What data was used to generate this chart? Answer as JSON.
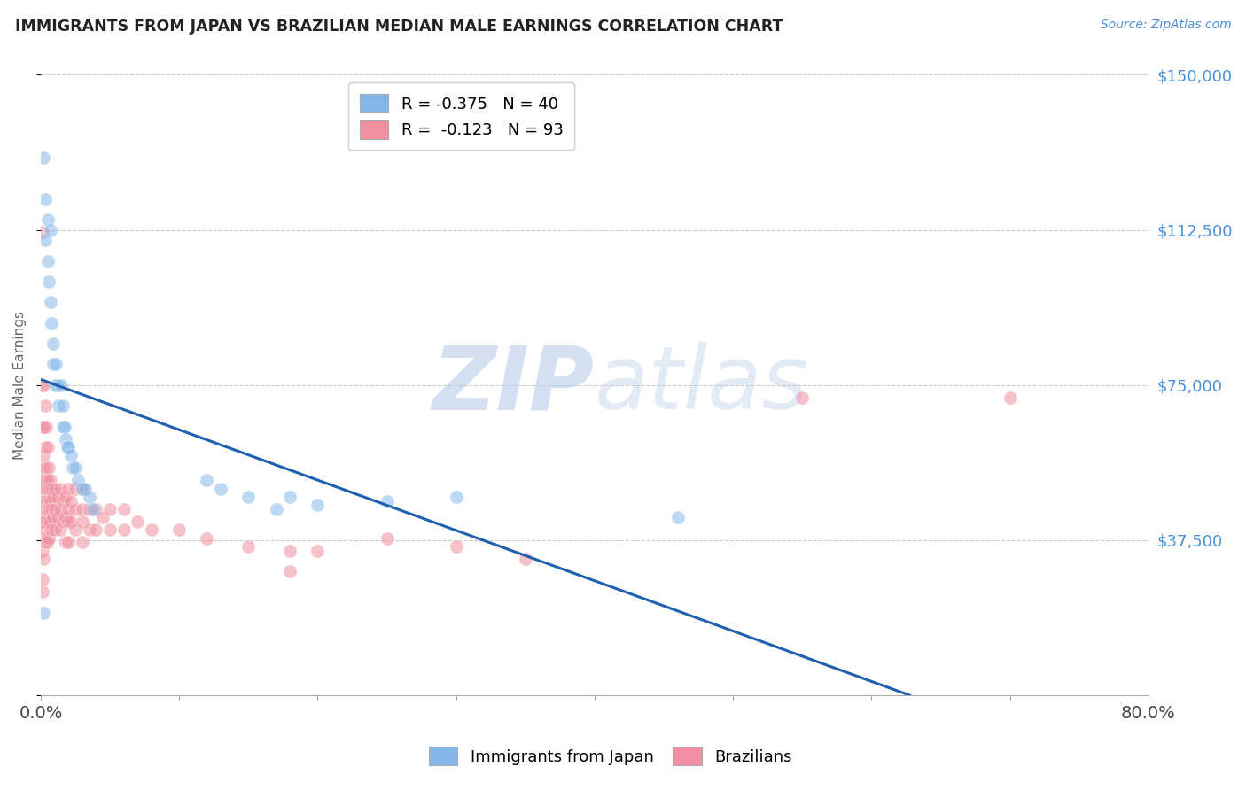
{
  "title": "IMMIGRANTS FROM JAPAN VS BRAZILIAN MEDIAN MALE EARNINGS CORRELATION CHART",
  "source": "Source: ZipAtlas.com",
  "ylabel": "Median Male Earnings",
  "yticks": [
    0,
    37500,
    75000,
    112500,
    150000
  ],
  "ytick_labels": [
    "",
    "$37,500",
    "$75,000",
    "$112,500",
    "$150,000"
  ],
  "xmin": 0.0,
  "xmax": 0.8,
  "ymin": 0,
  "ymax": 150000,
  "watermark_zip": "ZIP",
  "watermark_atlas": "atlas",
  "watermark_color_zip": "#c5d8f0",
  "watermark_color_atlas": "#c5d8f0",
  "blue_color": "#85b8e8",
  "pink_color": "#f090a0",
  "blue_trend_color": "#2060b0",
  "pink_trend_color": "#e05575",
  "japan_points_x": [
    0.002,
    0.003,
    0.003,
    0.005,
    0.005,
    0.006,
    0.007,
    0.007,
    0.008,
    0.009,
    0.009,
    0.01,
    0.011,
    0.012,
    0.013,
    0.015,
    0.016,
    0.016,
    0.017,
    0.018,
    0.019,
    0.02,
    0.022,
    0.023,
    0.025,
    0.027,
    0.03,
    0.032,
    0.035,
    0.038,
    0.12,
    0.13,
    0.15,
    0.17,
    0.18,
    0.2,
    0.25,
    0.3,
    0.46,
    0.002
  ],
  "japan_points_y": [
    130000,
    120000,
    110000,
    115000,
    105000,
    100000,
    112500,
    95000,
    90000,
    85000,
    80000,
    75000,
    80000,
    75000,
    70000,
    75000,
    70000,
    65000,
    65000,
    62000,
    60000,
    60000,
    58000,
    55000,
    55000,
    52000,
    50000,
    50000,
    48000,
    45000,
    52000,
    50000,
    48000,
    45000,
    48000,
    46000,
    47000,
    48000,
    43000,
    20000
  ],
  "brazil_points_x": [
    0.001,
    0.001,
    0.001,
    0.001,
    0.001,
    0.001,
    0.001,
    0.002,
    0.002,
    0.002,
    0.002,
    0.002,
    0.002,
    0.002,
    0.002,
    0.003,
    0.003,
    0.003,
    0.003,
    0.003,
    0.003,
    0.004,
    0.004,
    0.004,
    0.004,
    0.004,
    0.005,
    0.005,
    0.005,
    0.005,
    0.005,
    0.006,
    0.006,
    0.006,
    0.006,
    0.007,
    0.007,
    0.007,
    0.008,
    0.008,
    0.008,
    0.009,
    0.009,
    0.01,
    0.01,
    0.01,
    0.012,
    0.012,
    0.014,
    0.014,
    0.014,
    0.016,
    0.016,
    0.018,
    0.018,
    0.018,
    0.02,
    0.02,
    0.02,
    0.02,
    0.022,
    0.022,
    0.025,
    0.025,
    0.025,
    0.03,
    0.03,
    0.03,
    0.03,
    0.035,
    0.035,
    0.04,
    0.04,
    0.045,
    0.05,
    0.05,
    0.06,
    0.06,
    0.07,
    0.08,
    0.1,
    0.12,
    0.15,
    0.18,
    0.18,
    0.2,
    0.25,
    0.3,
    0.35,
    0.55,
    0.7,
    0.001,
    0.001
  ],
  "brazil_points_y": [
    112000,
    75000,
    65000,
    55000,
    50000,
    42000,
    35000,
    75000,
    65000,
    58000,
    52000,
    47000,
    43000,
    38000,
    33000,
    70000,
    60000,
    52000,
    47000,
    42000,
    37000,
    65000,
    55000,
    50000,
    45000,
    40000,
    60000,
    52000,
    47000,
    42000,
    37000,
    55000,
    50000,
    45000,
    38000,
    52000,
    47000,
    42000,
    50000,
    45000,
    40000,
    48000,
    43000,
    50000,
    45000,
    40000,
    48000,
    43000,
    50000,
    45000,
    40000,
    47000,
    42000,
    48000,
    43000,
    37000,
    50000,
    45000,
    42000,
    37000,
    47000,
    42000,
    50000,
    45000,
    40000,
    50000,
    45000,
    42000,
    37000,
    45000,
    40000,
    45000,
    40000,
    43000,
    45000,
    40000,
    45000,
    40000,
    42000,
    40000,
    40000,
    38000,
    36000,
    35000,
    30000,
    35000,
    38000,
    36000,
    33000,
    72000,
    72000,
    28000,
    25000
  ],
  "blue_legend_label": "R = -0.375   N = 40",
  "pink_legend_label": "R =  -0.123   N = 93",
  "legend_japan": "Immigrants from Japan",
  "legend_brazil": "Brazilians"
}
